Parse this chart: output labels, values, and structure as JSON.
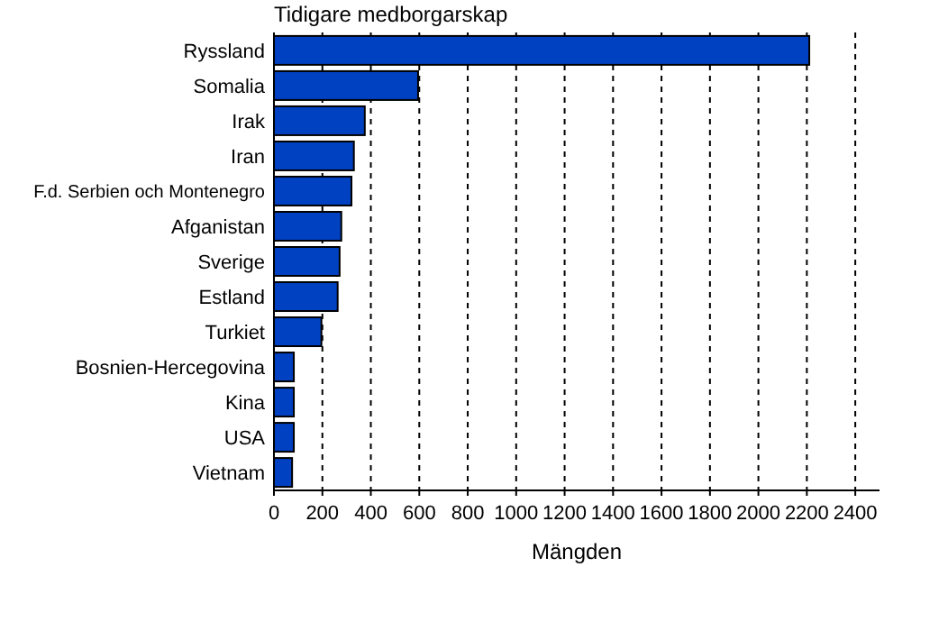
{
  "chart_data": {
    "type": "bar",
    "orientation": "horizontal",
    "title": "Tidigare medborgarskap",
    "xlabel": "Mängden",
    "categories": [
      "Ryssland",
      "Somalia",
      "Irak",
      "Iran",
      "F.d. Serbien och Montenegro",
      "Afganistan",
      "Sverige",
      "Estland",
      "Turkiet",
      "Bosnien-Hercegovina",
      "Kina",
      "USA",
      "Vietnam"
    ],
    "values": [
      2210,
      595,
      375,
      330,
      320,
      278,
      271,
      263,
      196,
      82,
      82,
      82,
      75
    ],
    "color": "#0041c2",
    "xlim": [
      0,
      2500
    ],
    "xticks": [
      0,
      200,
      400,
      600,
      800,
      1000,
      1200,
      1400,
      1600,
      1800,
      2000,
      2200,
      2400
    ],
    "grid": "x"
  }
}
